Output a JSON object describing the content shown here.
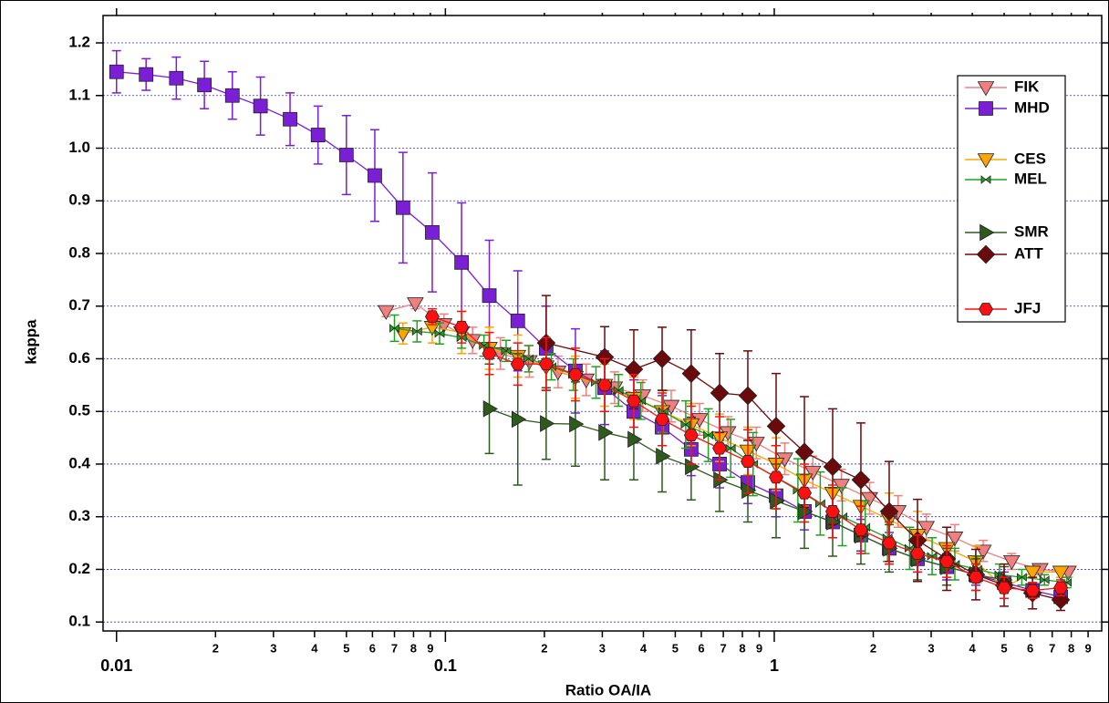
{
  "chart_data": {
    "type": "line",
    "x_label": "Ratio OA/IA",
    "y_label": "kappa",
    "x_scale": "log",
    "xlim": [
      0.0091,
      9.9
    ],
    "ylim": [
      0.083,
      1.252
    ],
    "xticks": [
      0.01,
      {
        "value": 0.02,
        "label": "2"
      },
      {
        "value": 0.03,
        "label": "3"
      },
      {
        "value": 0.04,
        "label": "4"
      },
      {
        "value": 0.05,
        "label": "5"
      },
      {
        "value": 0.06,
        "label": "6"
      },
      {
        "value": 0.07,
        "label": "7"
      },
      {
        "value": 0.08,
        "label": "8"
      },
      {
        "value": 0.09,
        "label": "9"
      },
      0.1,
      {
        "value": 0.2,
        "label": "2"
      },
      {
        "value": 0.3,
        "label": "3"
      },
      {
        "value": 0.4,
        "label": "4"
      },
      {
        "value": 0.5,
        "label": "5"
      },
      {
        "value": 0.6,
        "label": "6"
      },
      {
        "value": 0.7,
        "label": "7"
      },
      {
        "value": 0.8,
        "label": "8"
      },
      {
        "value": 0.9,
        "label": "9"
      },
      1,
      {
        "value": 2,
        "label": "2"
      },
      {
        "value": 3,
        "label": "3"
      },
      {
        "value": 4,
        "label": "4"
      },
      {
        "value": 5,
        "label": "5"
      },
      {
        "value": 6,
        "label": "6"
      },
      {
        "value": 7,
        "label": "7"
      },
      {
        "value": 8,
        "label": "8"
      },
      {
        "value": 9,
        "label": "9"
      }
    ],
    "yticks": [
      0.1,
      0.2,
      0.3,
      0.4,
      0.5,
      0.6,
      0.7,
      0.8,
      0.9,
      {
        "value": 1,
        "label": "1.0"
      },
      1.1,
      1.2
    ],
    "grid": true,
    "grid_color": "#3030d0",
    "legend": "upper right",
    "series": [
      {
        "name": "FIK",
        "color": "#f08080",
        "marker": "triangle-down",
        "x": [
          0.066,
          0.081,
          0.099,
          0.121,
          0.147,
          0.18,
          0.22,
          0.268,
          0.327,
          0.398,
          0.486,
          0.593,
          0.723,
          0.882,
          1.076,
          1.31,
          1.6,
          1.95,
          2.38,
          2.9,
          3.54,
          4.32,
          5.27,
          6.43,
          7.84
        ],
        "values": [
          0.69,
          0.705,
          0.665,
          0.635,
          0.61,
          0.595,
          0.575,
          0.56,
          0.545,
          0.53,
          0.51,
          0.485,
          0.46,
          0.44,
          0.41,
          0.385,
          0.36,
          0.335,
          0.31,
          0.28,
          0.26,
          0.235,
          0.215,
          0.2,
          0.195
        ],
        "errors": [
          0.01,
          0.01,
          0.02,
          0.025,
          0.03,
          0.03,
          0.03,
          0.03,
          0.03,
          0.03,
          0.03,
          0.03,
          0.03,
          0.03,
          0.03,
          0.03,
          0.03,
          0.03,
          0.03,
          0.025,
          0.025,
          0.02,
          0.015,
          0.01,
          0.01
        ]
      },
      {
        "name": "MHD",
        "color": "#7a1fd6",
        "marker": "square",
        "x": [
          0.01,
          0.0123,
          0.0152,
          0.0185,
          0.0225,
          0.0274,
          0.0337,
          0.041,
          0.05,
          0.061,
          0.0743,
          0.0912,
          0.112,
          0.136,
          0.166,
          0.2025,
          0.2485,
          0.305,
          0.374,
          0.456,
          0.559,
          0.682,
          0.831,
          1.013,
          1.235,
          1.505,
          1.834,
          2.236,
          2.726,
          3.345,
          4.1,
          5.0,
          6.1,
          7.43
        ],
        "values": [
          1.145,
          1.14,
          1.133,
          1.12,
          1.1,
          1.08,
          1.055,
          1.025,
          0.987,
          0.948,
          0.887,
          0.84,
          0.783,
          0.72,
          0.672,
          0.62,
          0.577,
          0.545,
          0.5,
          0.47,
          0.428,
          0.4,
          0.365,
          0.34,
          0.31,
          0.29,
          0.265,
          0.24,
          0.22,
          0.205,
          0.19,
          0.175,
          0.16,
          0.148
        ],
        "errors": [
          0.04,
          0.03,
          0.04,
          0.045,
          0.045,
          0.055,
          0.05,
          0.055,
          0.075,
          0.087,
          0.105,
          0.113,
          0.113,
          0.105,
          0.095,
          0.08,
          0.08,
          0.07,
          0.06,
          0.06,
          0.05,
          0.045,
          0.04,
          0.04,
          0.035,
          0.03,
          0.03,
          0.03,
          0.025,
          0.025,
          0.02,
          0.02,
          0.015,
          0.015
        ]
      },
      {
        "name": "CES",
        "color": "#ffa500",
        "marker": "triangle-down",
        "x": [
          0.0743,
          0.0912,
          0.112,
          0.136,
          0.166,
          0.2025,
          0.2485,
          0.305,
          0.374,
          0.456,
          0.559,
          0.682,
          0.831,
          1.013,
          1.235,
          1.505,
          1.834,
          2.236,
          2.726,
          3.345,
          4.1,
          5.0,
          6.1,
          7.43
        ],
        "values": [
          0.648,
          0.66,
          0.65,
          0.62,
          0.605,
          0.585,
          0.565,
          0.55,
          0.525,
          0.5,
          0.475,
          0.45,
          0.425,
          0.4,
          0.37,
          0.345,
          0.32,
          0.295,
          0.265,
          0.24,
          0.215,
          0.165,
          0.195,
          0.195
        ],
        "errors": [
          0.02,
          0.03,
          0.04,
          0.04,
          0.04,
          0.04,
          0.04,
          0.04,
          0.04,
          0.04,
          0.04,
          0.045,
          0.045,
          0.05,
          0.05,
          0.05,
          0.05,
          0.05,
          0.045,
          0.04,
          0.03,
          0.02,
          0.01,
          0.01
        ]
      },
      {
        "name": "MEL",
        "color": "#22a022",
        "marker": "bowtie",
        "x": [
          0.07,
          0.082,
          0.096,
          0.112,
          0.131,
          0.153,
          0.179,
          0.21,
          0.245,
          0.287,
          0.336,
          0.393,
          0.46,
          0.538,
          0.63,
          0.737,
          0.862,
          1.01,
          1.18,
          1.38,
          1.61,
          1.89,
          2.21,
          2.58,
          3.02,
          3.54,
          4.14,
          4.84,
          5.66,
          6.63,
          7.75
        ],
        "values": [
          0.658,
          0.652,
          0.648,
          0.64,
          0.625,
          0.615,
          0.6,
          0.585,
          0.57,
          0.555,
          0.54,
          0.52,
          0.5,
          0.475,
          0.455,
          0.43,
          0.4,
          0.375,
          0.35,
          0.325,
          0.3,
          0.28,
          0.26,
          0.24,
          0.225,
          0.21,
          0.2,
          0.19,
          0.185,
          0.18,
          0.175
        ],
        "errors": [
          0.025,
          0.02,
          0.02,
          0.02,
          0.02,
          0.02,
          0.025,
          0.025,
          0.03,
          0.03,
          0.03,
          0.035,
          0.04,
          0.045,
          0.05,
          0.055,
          0.06,
          0.06,
          0.06,
          0.06,
          0.055,
          0.05,
          0.045,
          0.04,
          0.035,
          0.03,
          0.025,
          0.02,
          0.015,
          0.01,
          0.01
        ]
      },
      {
        "name": "SMR",
        "color": "#2e5a1c",
        "marker": "triangle-right",
        "x": [
          0.136,
          0.166,
          0.2025,
          0.2485,
          0.305,
          0.374,
          0.456,
          0.559,
          0.682,
          0.831,
          1.013,
          1.235,
          1.505,
          1.834,
          2.236,
          2.726,
          3.345,
          4.1,
          5.0
        ],
        "values": [
          0.505,
          0.485,
          0.477,
          0.476,
          0.46,
          0.447,
          0.415,
          0.395,
          0.37,
          0.35,
          0.33,
          0.31,
          0.29,
          0.265,
          0.24,
          0.22,
          0.205,
          0.19,
          0.18
        ],
        "errors": [
          0.085,
          0.125,
          0.068,
          0.08,
          0.09,
          0.077,
          0.068,
          0.063,
          0.06,
          0.06,
          0.07,
          0.07,
          0.065,
          0.055,
          0.045,
          0.04,
          0.035,
          0.03,
          0.025
        ]
      },
      {
        "name": "ATT",
        "color": "#6b0a0a",
        "marker": "diamond",
        "x": [
          0.2025,
          0.305,
          0.374,
          0.456,
          0.559,
          0.682,
          0.831,
          1.013,
          1.235,
          1.505,
          1.834,
          2.236,
          2.726,
          3.345,
          4.1,
          5.0,
          6.1,
          7.43
        ],
        "values": [
          0.63,
          0.603,
          0.58,
          0.6,
          0.572,
          0.535,
          0.53,
          0.472,
          0.423,
          0.395,
          0.37,
          0.31,
          0.255,
          0.22,
          0.19,
          0.17,
          0.155,
          0.142
        ],
        "errors": [
          0.09,
          0.058,
          0.075,
          0.06,
          0.083,
          0.075,
          0.085,
          0.1,
          0.105,
          0.11,
          0.108,
          0.095,
          0.078,
          0.06,
          0.048,
          0.04,
          0.03,
          0.02
        ]
      },
      {
        "name": "JFJ",
        "color": "#ff1010",
        "marker": "hexagon",
        "x": [
          0.0912,
          0.112,
          0.136,
          0.166,
          0.2025,
          0.2485,
          0.305,
          0.374,
          0.456,
          0.559,
          0.682,
          0.831,
          1.013,
          1.235,
          1.505,
          1.834,
          2.236,
          2.726,
          3.345,
          4.1,
          5.0,
          6.1,
          7.43
        ],
        "values": [
          0.68,
          0.66,
          0.61,
          0.59,
          0.59,
          0.57,
          0.55,
          0.52,
          0.485,
          0.455,
          0.43,
          0.405,
          0.375,
          0.345,
          0.31,
          0.275,
          0.25,
          0.23,
          0.215,
          0.185,
          0.165,
          0.16,
          0.165
        ],
        "errors": [
          0.015,
          0.03,
          0.04,
          0.04,
          0.05,
          0.05,
          0.05,
          0.05,
          0.05,
          0.055,
          0.06,
          0.06,
          0.06,
          0.055,
          0.05,
          0.045,
          0.04,
          0.035,
          0.03,
          0.025,
          0.02,
          0.015,
          0.015
        ]
      }
    ]
  }
}
